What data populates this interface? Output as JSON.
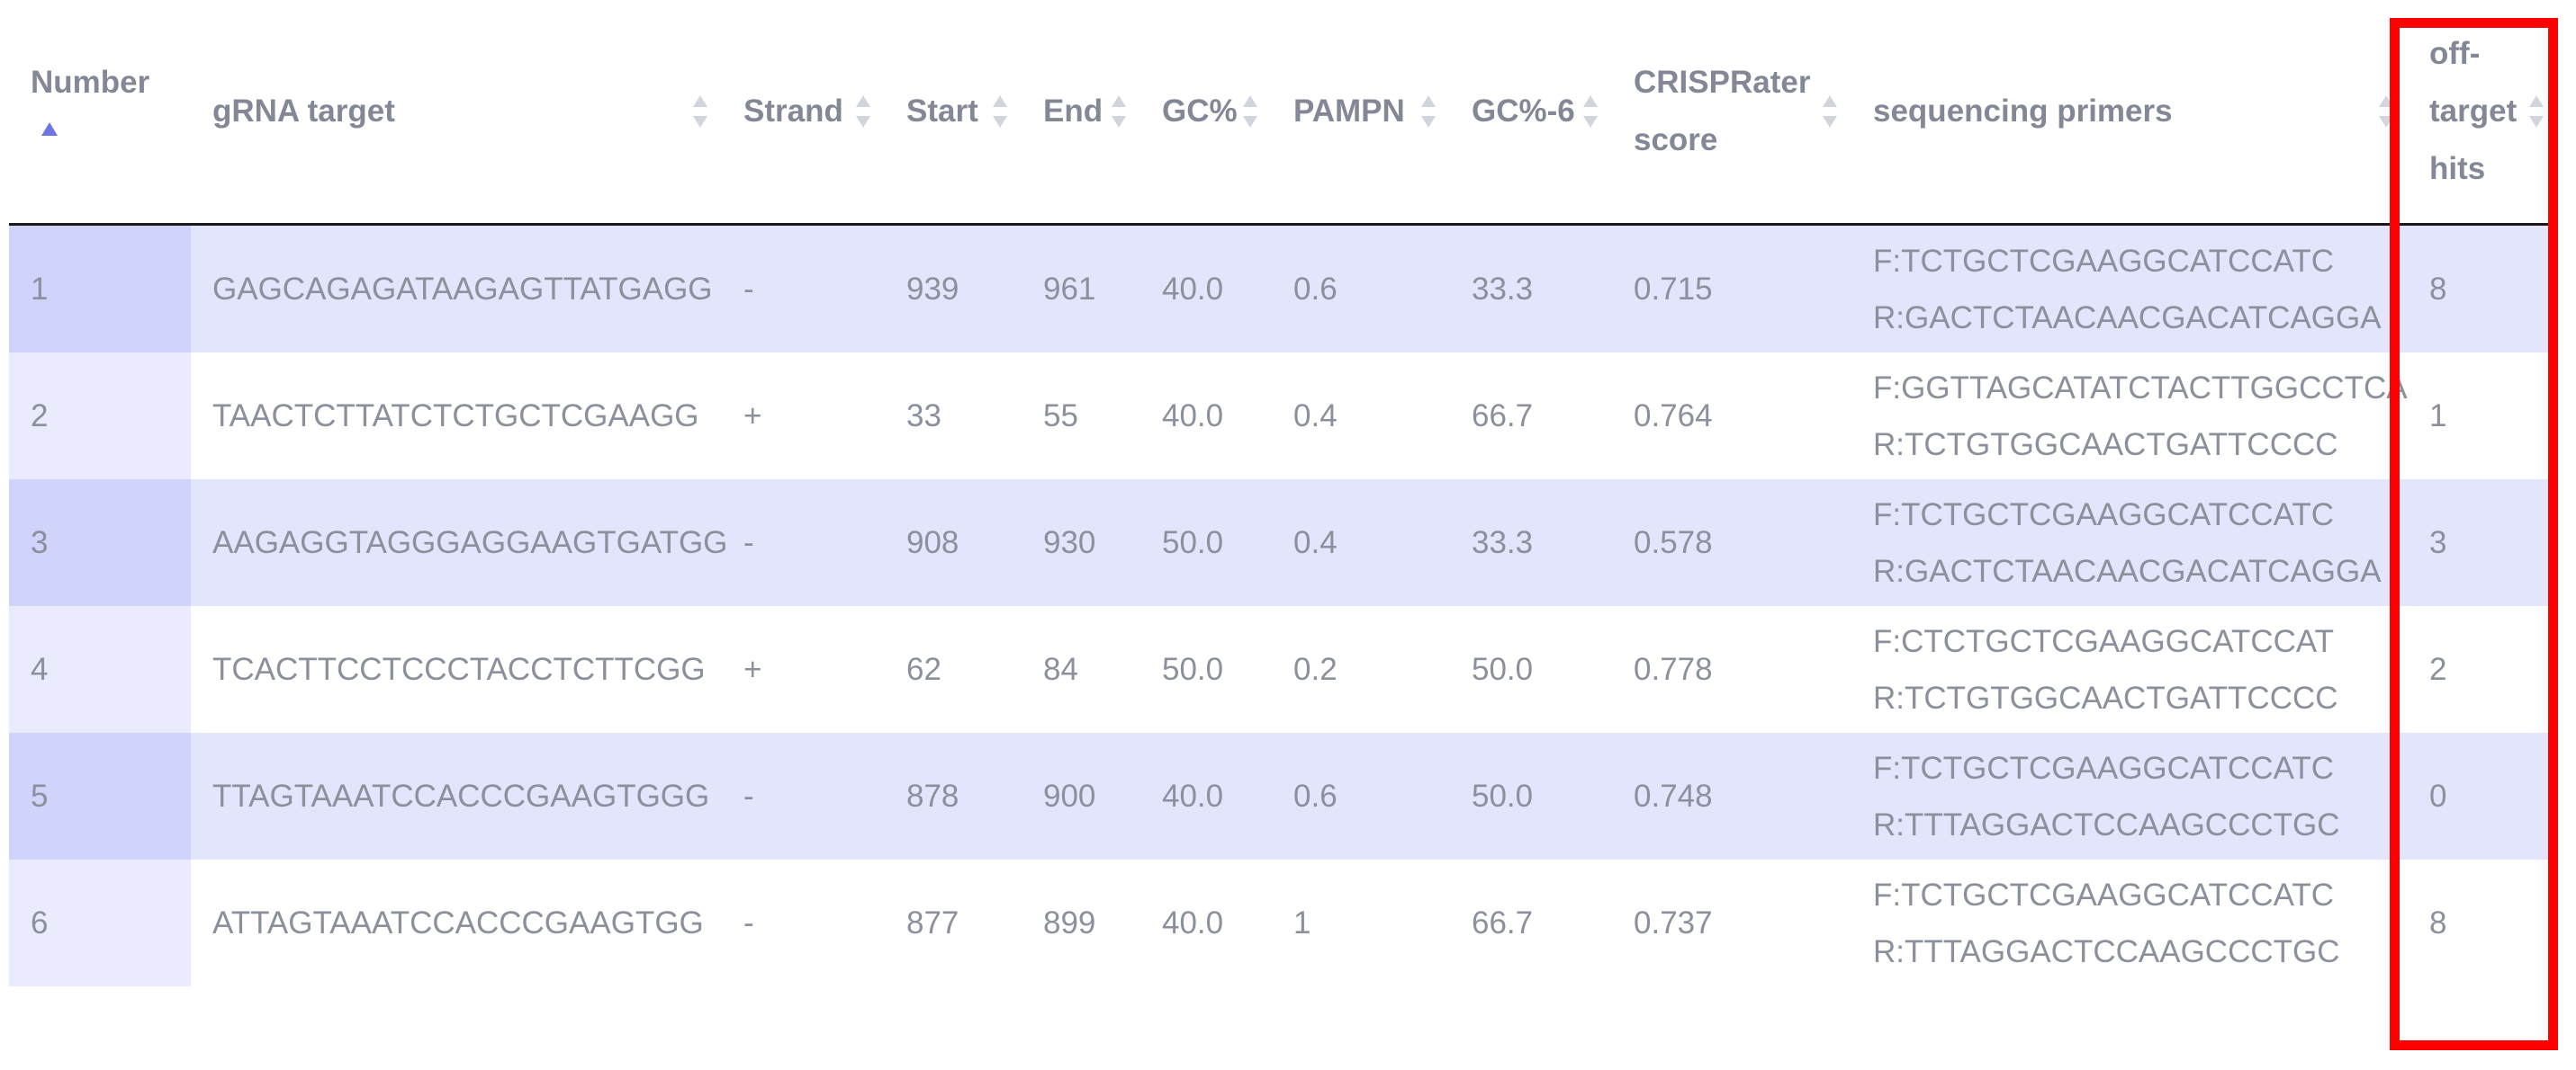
{
  "table": {
    "columns": [
      {
        "label": "Number",
        "sort": "ascending"
      },
      {
        "label": "gRNA target",
        "sort": "none"
      },
      {
        "label": "Strand",
        "sort": "none"
      },
      {
        "label": "Start",
        "sort": "none"
      },
      {
        "label": "End",
        "sort": "none"
      },
      {
        "label": "GC%",
        "sort": "none"
      },
      {
        "label": "PAMPN",
        "sort": "none"
      },
      {
        "label": "GC%-6",
        "sort": "none"
      },
      {
        "label": "CRISPRater score",
        "sort": "none"
      },
      {
        "label": "sequencing primers",
        "sort": "none"
      },
      {
        "label": "off-target hits",
        "sort": "none"
      }
    ],
    "rows": [
      {
        "number": "1",
        "grna": "GAGCAGAGATAAGAGTTATGAGG",
        "strand": "-",
        "start": "939",
        "end": "961",
        "gc": "40.0",
        "pampn": "0.6",
        "gc6": "33.3",
        "score": "0.715",
        "primer_f": "F:TCTGCTCGAAGGCATCCATC",
        "primer_r": "R:GACTCTAACAACGACATCAGGA",
        "offtarget": "8"
      },
      {
        "number": "2",
        "grna": "TAACTCTTATCTCTGCTCGAAGG",
        "strand": "+",
        "start": "33",
        "end": "55",
        "gc": "40.0",
        "pampn": "0.4",
        "gc6": "66.7",
        "score": "0.764",
        "primer_f": "F:GGTTAGCATATCTACTTGGCCTCA",
        "primer_r": "R:TCTGTGGCAACTGATTCCCC",
        "offtarget": "1"
      },
      {
        "number": "3",
        "grna": "AAGAGGTAGGGAGGAAGTGATGG",
        "strand": "-",
        "start": "908",
        "end": "930",
        "gc": "50.0",
        "pampn": "0.4",
        "gc6": "33.3",
        "score": "0.578",
        "primer_f": "F:TCTGCTCGAAGGCATCCATC",
        "primer_r": "R:GACTCTAACAACGACATCAGGA",
        "offtarget": "3"
      },
      {
        "number": "4",
        "grna": "TCACTTCCTCCCTACCTCTTCGG",
        "strand": "+",
        "start": "62",
        "end": "84",
        "gc": "50.0",
        "pampn": "0.2",
        "gc6": "50.0",
        "score": "0.778",
        "primer_f": "F:CTCTGCTCGAAGGCATCCAT",
        "primer_r": "R:TCTGTGGCAACTGATTCCCC",
        "offtarget": "2"
      },
      {
        "number": "5",
        "grna": "TTAGTAAATCCACCCGAAGTGGG",
        "strand": "-",
        "start": "878",
        "end": "900",
        "gc": "40.0",
        "pampn": "0.6",
        "gc6": "50.0",
        "score": "0.748",
        "primer_f": "F:TCTGCTCGAAGGCATCCATC",
        "primer_r": "R:TTTAGGACTCCAAGCCCTGC",
        "offtarget": "0"
      },
      {
        "number": "6",
        "grna": "ATTAGTAAATCCACCCGAAGTGG",
        "strand": "-",
        "start": "877",
        "end": "899",
        "gc": "40.0",
        "pampn": "1",
        "gc6": "66.7",
        "score": "0.737",
        "primer_f": "F:TCTGCTCGAAGGCATCCATC",
        "primer_r": "R:TTTAGGACTCCAAGCCCTGC",
        "offtarget": "8"
      }
    ]
  },
  "colors": {
    "header_text": "#848896",
    "cell_text": "#8c909c",
    "odd_row_bg": "#e3e5fc",
    "sorted_column_odd_bg": "#d0d3fa",
    "sorted_column_even_bg": "#eaebfd",
    "sort_active": "#6f75e0",
    "highlight_border": "#ff0000"
  }
}
